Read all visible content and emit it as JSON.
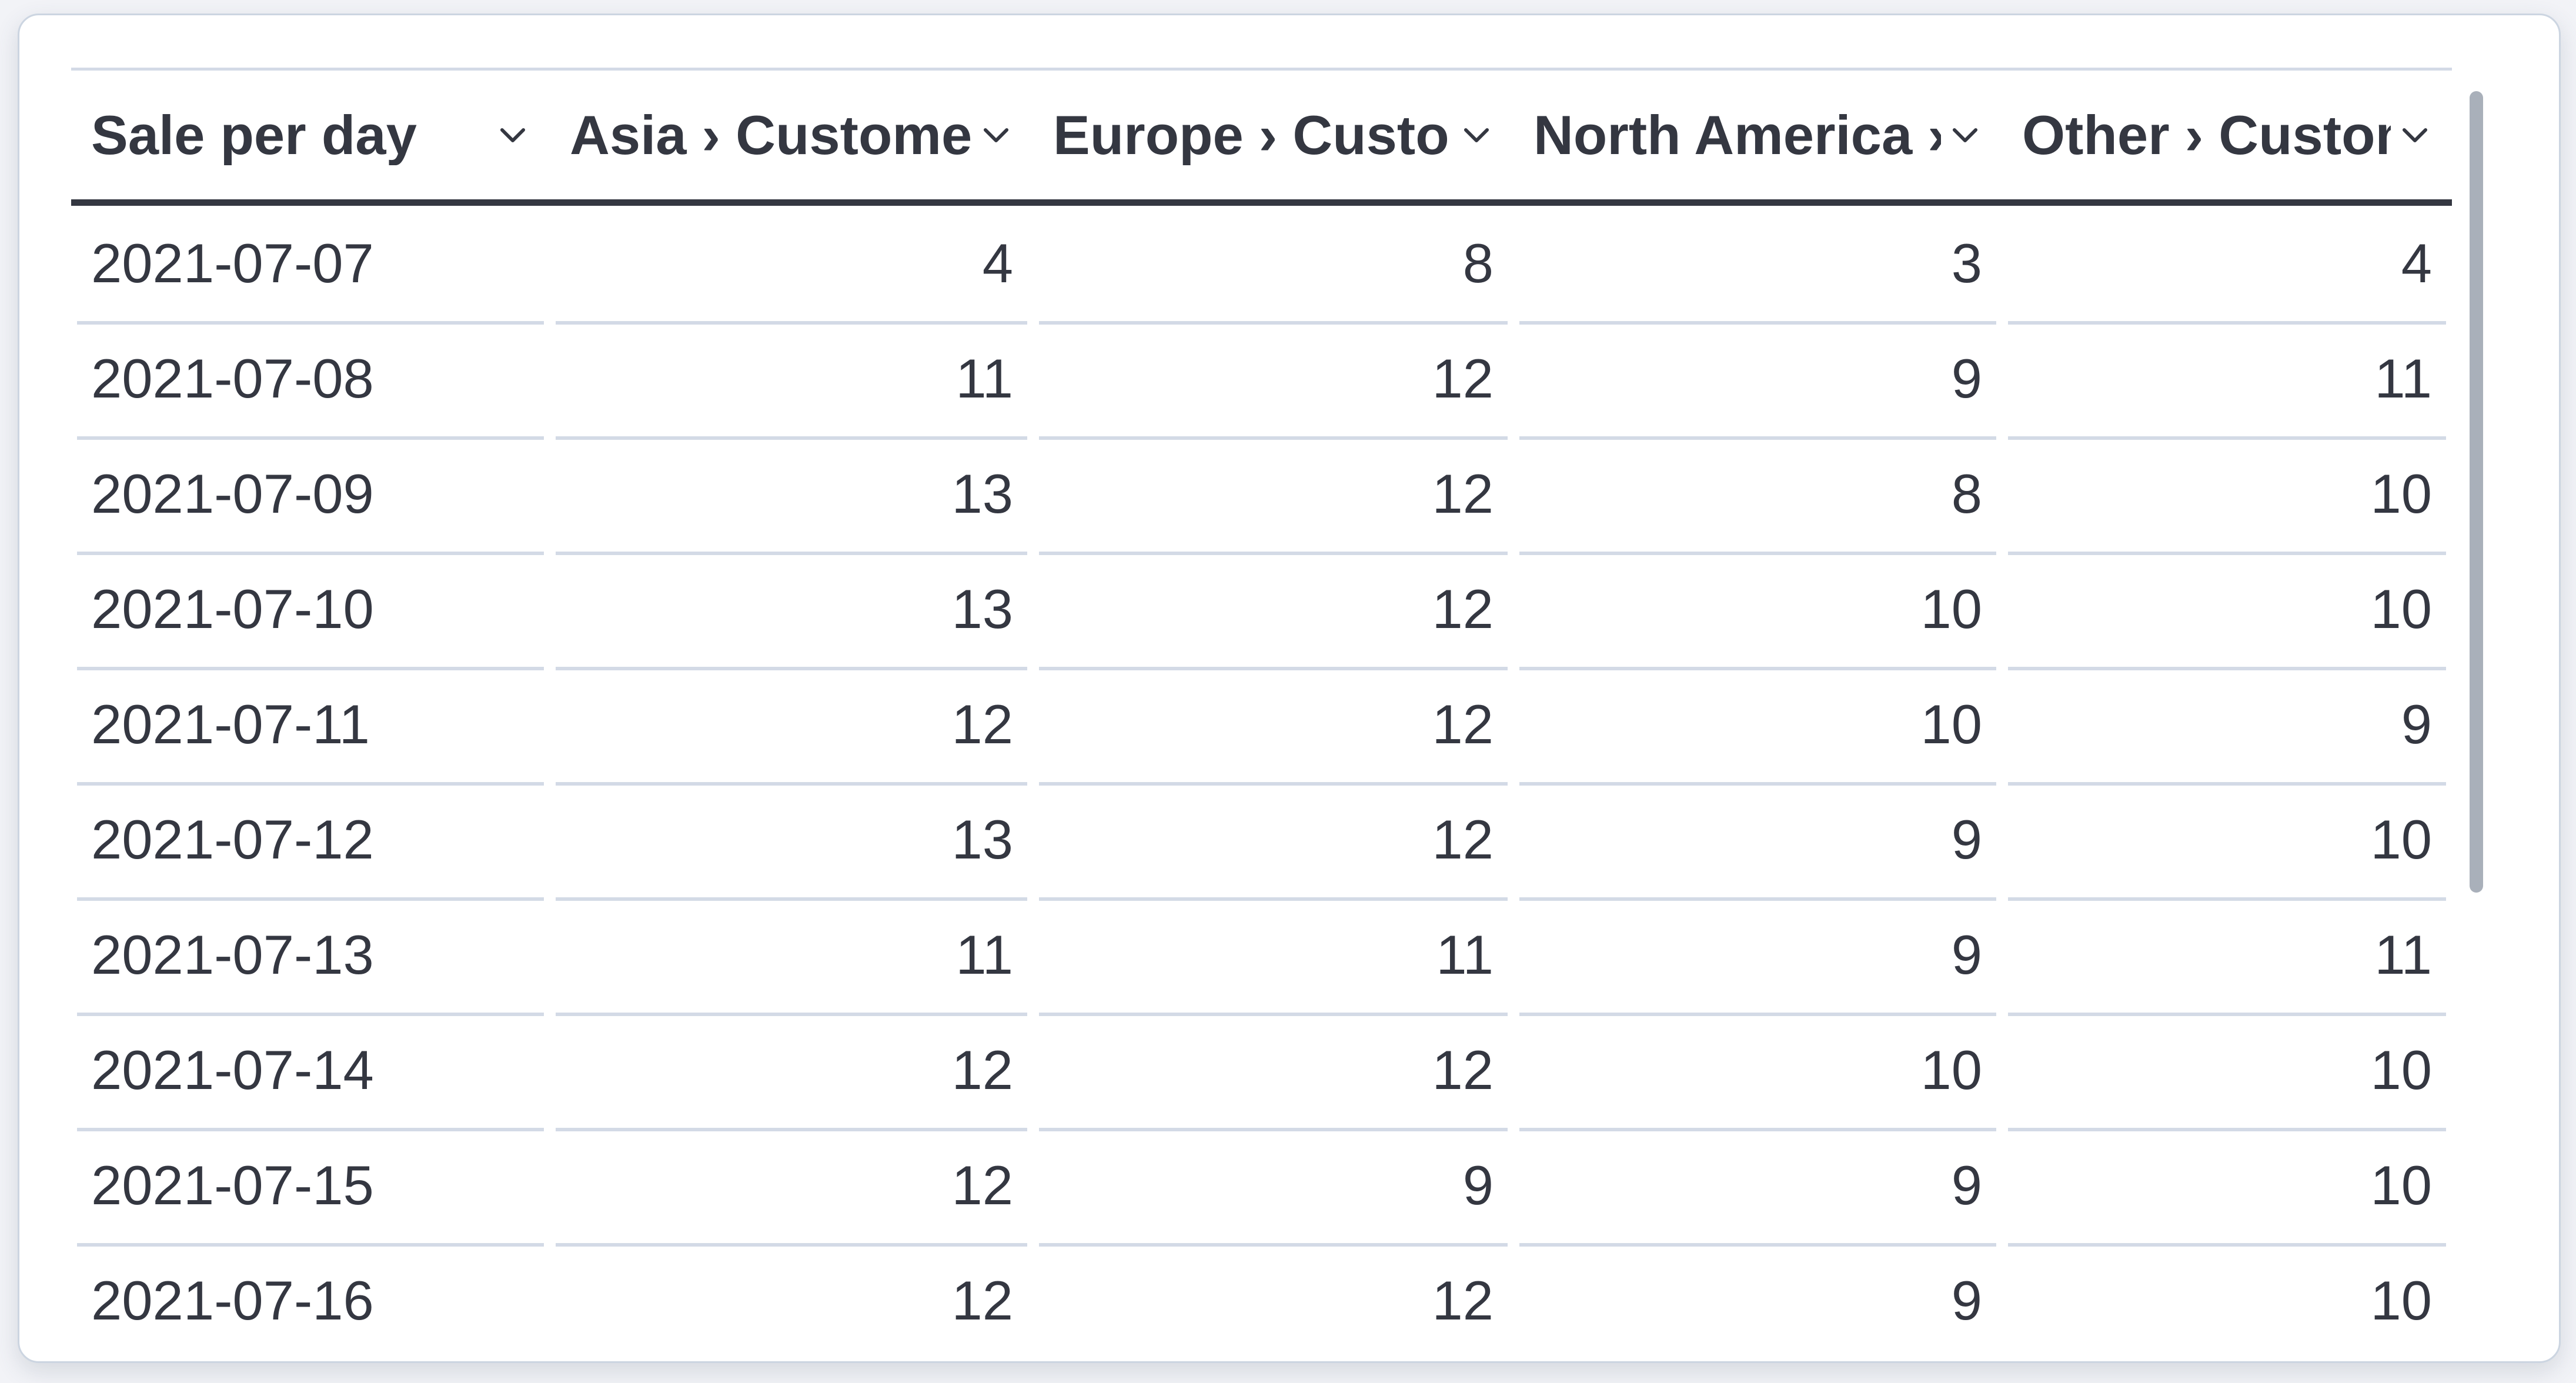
{
  "panel": {
    "type": "data-table-visualization"
  },
  "table": {
    "columns": [
      {
        "id": "date",
        "label": "Sale per day",
        "align": "left"
      },
      {
        "id": "asia",
        "label": "Asia › Customers",
        "align": "right"
      },
      {
        "id": "europe",
        "label": "Europe › Customers",
        "align": "right"
      },
      {
        "id": "north_america",
        "label": "North America › Customers",
        "align": "right"
      },
      {
        "id": "other",
        "label": "Other › Customers",
        "align": "right"
      }
    ],
    "rows": [
      {
        "date": "2021-07-07",
        "values": [
          4,
          8,
          3,
          4
        ]
      },
      {
        "date": "2021-07-08",
        "values": [
          11,
          12,
          9,
          11
        ]
      },
      {
        "date": "2021-07-09",
        "values": [
          13,
          12,
          8,
          10
        ]
      },
      {
        "date": "2021-07-10",
        "values": [
          13,
          12,
          10,
          10
        ]
      },
      {
        "date": "2021-07-11",
        "values": [
          12,
          12,
          10,
          9
        ]
      },
      {
        "date": "2021-07-12",
        "values": [
          13,
          12,
          9,
          10
        ]
      },
      {
        "date": "2021-07-13",
        "values": [
          11,
          11,
          9,
          11
        ]
      },
      {
        "date": "2021-07-14",
        "values": [
          12,
          12,
          10,
          10
        ]
      },
      {
        "date": "2021-07-15",
        "values": [
          12,
          9,
          9,
          10
        ]
      },
      {
        "date": "2021-07-16",
        "values": [
          12,
          12,
          9,
          10
        ]
      }
    ]
  },
  "chart_data": {
    "type": "table",
    "title": "Sale per day",
    "categories": [
      "2021-07-07",
      "2021-07-08",
      "2021-07-09",
      "2021-07-10",
      "2021-07-11",
      "2021-07-12",
      "2021-07-13",
      "2021-07-14",
      "2021-07-15",
      "2021-07-16"
    ],
    "series": [
      {
        "name": "Asia › Customers",
        "values": [
          4,
          11,
          13,
          13,
          12,
          13,
          11,
          12,
          12,
          12
        ]
      },
      {
        "name": "Europe › Customers",
        "values": [
          8,
          12,
          12,
          12,
          12,
          12,
          11,
          12,
          9,
          12
        ]
      },
      {
        "name": "North America › Customers",
        "values": [
          3,
          9,
          8,
          10,
          10,
          9,
          9,
          10,
          9,
          9
        ]
      },
      {
        "name": "Other › Customers",
        "values": [
          4,
          11,
          10,
          10,
          9,
          10,
          11,
          10,
          10,
          10
        ]
      }
    ],
    "legend_position": "none",
    "grid": "row-dividers-only"
  },
  "scrollbar": {
    "orientation": "vertical",
    "thumb_visible": true
  },
  "icons": {
    "header_sort": "chevron-down-icon"
  },
  "colors": {
    "text": "#343741",
    "header_underline": "#343741",
    "row_divider": "#d3dae6",
    "panel_border": "#ccd5e1",
    "panel_background": "#ffffff",
    "page_background": "#f2f3f7",
    "scrollbar_thumb": "#a9b0ba"
  }
}
